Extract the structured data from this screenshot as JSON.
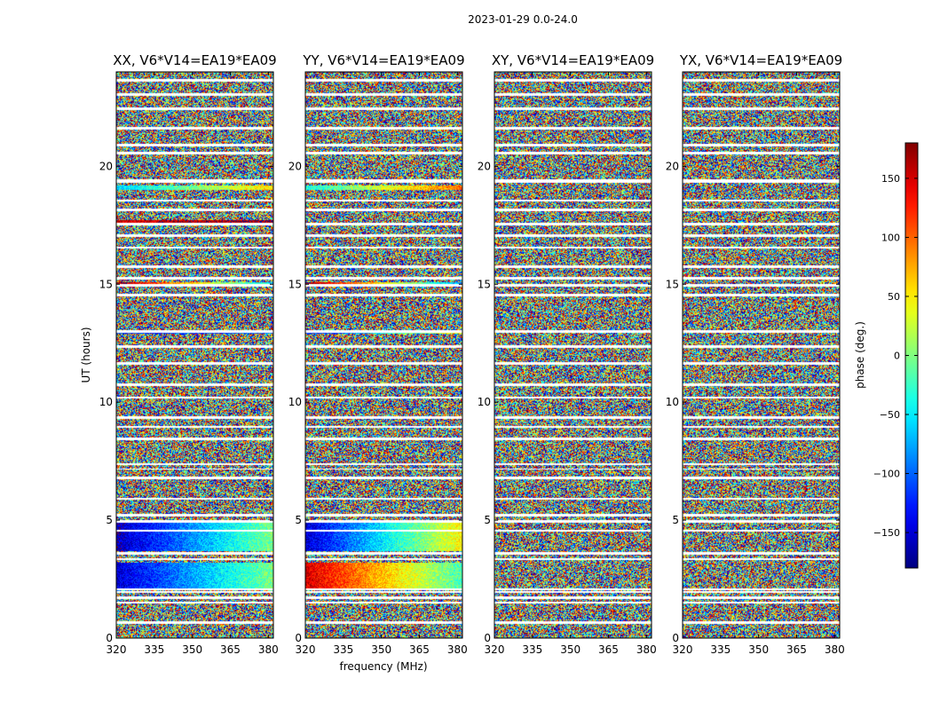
{
  "chart_data": {
    "type": "heatmap",
    "title": "2023-01-29 0.0-24.0",
    "xlabel": "frequency (MHz)",
    "ylabel": "UT (hours)",
    "colorbar_label": "phase (deg.)",
    "colormap": "jet",
    "xlim": [
      320,
      382
    ],
    "ylim": [
      0,
      24
    ],
    "clim": [
      -180,
      180
    ],
    "xticks": [
      320,
      335,
      350,
      365,
      380
    ],
    "yticks": [
      0,
      5,
      10,
      15,
      20
    ],
    "cbar_ticks": [
      150,
      100,
      50,
      0,
      -50,
      -100,
      -150
    ],
    "panels": [
      {
        "title": "XX, V6*V14=EA19*EA09",
        "pol": "XX"
      },
      {
        "title": "YY, V6*V14=EA19*EA09",
        "pol": "YY"
      },
      {
        "title": "XY, V6*V14=EA19*EA09",
        "pol": "XY"
      },
      {
        "title": "YX, V6*V14=EA19*EA09",
        "pol": "YX"
      }
    ],
    "flagged_ut_hours": [
      [
        0.6,
        0.7
      ],
      [
        1.45,
        1.55
      ],
      [
        1.65,
        1.75
      ],
      [
        1.9,
        2.0
      ],
      [
        2.05,
        2.1
      ],
      [
        3.3,
        3.4
      ],
      [
        3.55,
        3.65
      ],
      [
        4.5,
        4.6
      ],
      [
        4.9,
        5.0
      ],
      [
        5.15,
        5.25
      ],
      [
        5.85,
        5.95
      ],
      [
        6.75,
        6.85
      ],
      [
        7.15,
        7.2
      ],
      [
        7.35,
        7.4
      ],
      [
        8.4,
        8.5
      ],
      [
        8.9,
        9.0
      ],
      [
        9.3,
        9.4
      ],
      [
        10.15,
        10.25
      ],
      [
        10.7,
        10.8
      ],
      [
        11.6,
        11.7
      ],
      [
        12.3,
        12.4
      ],
      [
        12.95,
        13.05
      ],
      [
        14.5,
        14.6
      ],
      [
        14.9,
        15.0
      ],
      [
        15.2,
        15.3
      ],
      [
        15.7,
        15.8
      ],
      [
        16.5,
        16.6
      ],
      [
        17.0,
        17.1
      ],
      [
        17.5,
        17.6
      ],
      [
        18.1,
        18.2
      ],
      [
        18.5,
        18.6
      ],
      [
        19.3,
        19.45
      ],
      [
        20.5,
        20.6
      ],
      [
        20.85,
        20.95
      ],
      [
        21.55,
        21.65
      ],
      [
        22.4,
        22.5
      ],
      [
        23.0,
        23.1
      ],
      [
        23.6,
        23.7
      ]
    ],
    "coherent_phase_segments": [
      {
        "panel": "XX",
        "ut": [
          2.1,
          3.2
        ],
        "phase_at_320MHz": -150,
        "phase_at_380MHz": 0
      },
      {
        "panel": "XX",
        "ut": [
          3.7,
          4.9
        ],
        "phase_at_320MHz": -160,
        "phase_at_380MHz": 0
      },
      {
        "panel": "XX",
        "ut": [
          12.9,
          13.0
        ],
        "phase_at_320MHz": -120,
        "phase_at_380MHz": -100
      },
      {
        "panel": "XX",
        "ut": [
          15.0,
          15.1
        ],
        "phase_at_320MHz": 170,
        "phase_at_380MHz": -60
      },
      {
        "panel": "XX",
        "ut": [
          17.6,
          17.7
        ],
        "phase_at_320MHz": 150,
        "phase_at_380MHz": 170
      },
      {
        "panel": "XX",
        "ut": [
          19.0,
          19.2
        ],
        "phase_at_320MHz": -60,
        "phase_at_380MHz": 60
      },
      {
        "panel": "YY",
        "ut": [
          2.1,
          3.2
        ],
        "phase_at_320MHz": 150,
        "phase_at_380MHz": -20
      },
      {
        "panel": "YY",
        "ut": [
          3.7,
          4.9
        ],
        "phase_at_320MHz": -150,
        "phase_at_380MHz": 50
      },
      {
        "panel": "YY",
        "ut": [
          12.9,
          13.0
        ],
        "phase_at_320MHz": -140,
        "phase_at_380MHz": 50
      },
      {
        "panel": "YY",
        "ut": [
          15.0,
          15.1
        ],
        "phase_at_320MHz": 170,
        "phase_at_380MHz": -80
      },
      {
        "panel": "YY",
        "ut": [
          19.0,
          19.2
        ],
        "phase_at_320MHz": -40,
        "phase_at_380MHz": 100
      }
    ]
  }
}
